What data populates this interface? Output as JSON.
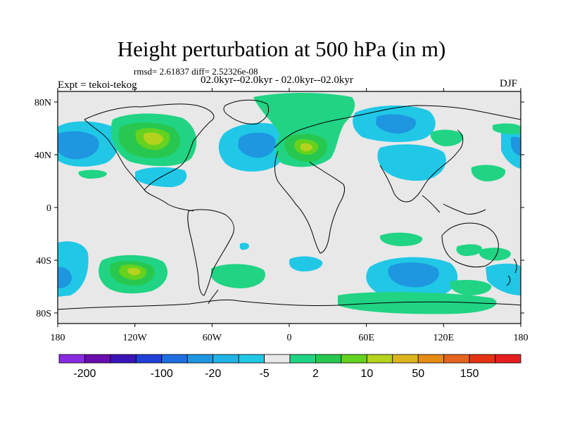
{
  "title": "Height perturbation at 500 hPa (in m)",
  "stats": "rmsd= 2.61837 diff= 2.52326e-08",
  "period": "02.0kyr--02.0kyr - 02.0kyr--02.0kyr",
  "experiment": "Expt = tekoi-tekog",
  "season": "DJF",
  "map": {
    "lon_ticks": [
      {
        "value": -180,
        "label": "180"
      },
      {
        "value": -120,
        "label": "120W"
      },
      {
        "value": -60,
        "label": "60W"
      },
      {
        "value": 0,
        "label": "0"
      },
      {
        "value": 60,
        "label": "60E"
      },
      {
        "value": 120,
        "label": "120E"
      },
      {
        "value": 180,
        "label": "180"
      }
    ],
    "lat_ticks": [
      {
        "value": 80,
        "label": "80N"
      },
      {
        "value": 40,
        "label": "40N"
      },
      {
        "value": 0,
        "label": "0"
      },
      {
        "value": -40,
        "label": "40S"
      },
      {
        "value": -80,
        "label": "80S"
      }
    ]
  },
  "colorbar": {
    "colors": [
      "#8a2be2",
      "#6a0dad",
      "#3a14b8",
      "#2040d8",
      "#1e6ee0",
      "#1e96e0",
      "#22b4e6",
      "#20c8e6",
      "#e8e8e8",
      "#20d484",
      "#28c850",
      "#64d21e",
      "#b4d21e",
      "#dcb41e",
      "#e68c14",
      "#e6641e",
      "#e63214",
      "#e61e1e"
    ],
    "labels": [
      {
        "after_box": 1,
        "text": "-200"
      },
      {
        "after_box": 4,
        "text": "-100"
      },
      {
        "after_box": 6,
        "text": "-20"
      },
      {
        "after_box": 8,
        "text": "-5"
      },
      {
        "after_box": 10,
        "text": "2"
      },
      {
        "after_box": 12,
        "text": "10"
      },
      {
        "after_box": 14,
        "text": "50"
      },
      {
        "after_box": 16,
        "text": "150"
      }
    ]
  }
}
